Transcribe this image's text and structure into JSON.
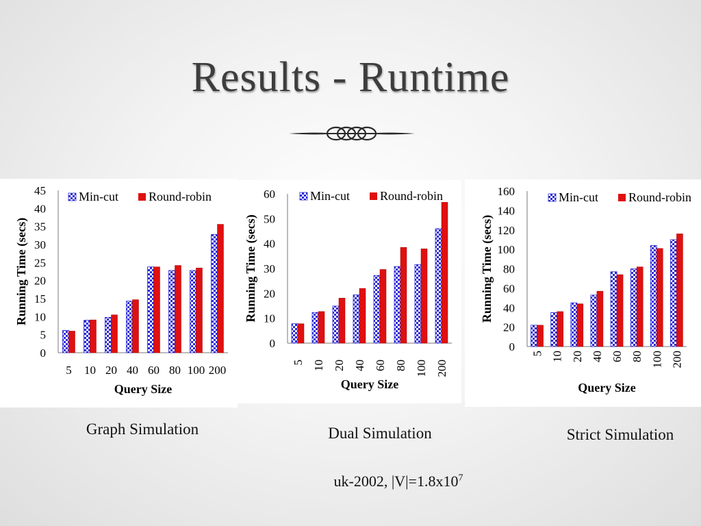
{
  "slide": {
    "title": "Results - Runtime",
    "footnote": {
      "text": "uk-2002, |V|=1.8x10",
      "superscript": "7"
    }
  },
  "colors": {
    "min_cut": "#2a2ad6",
    "round_robin": "#e01010"
  },
  "chart_data": [
    {
      "type": "bar",
      "caption": "Graph Simulation",
      "xlabel": "Query Size",
      "ylabel": "Running Time (secs)",
      "ylim": [
        0,
        45
      ],
      "ystep": 5,
      "tick_rotation": "horizontal",
      "legend_position": "top",
      "categories": [
        "5",
        "10",
        "20",
        "40",
        "60",
        "80",
        "100",
        "200"
      ],
      "series": [
        {
          "name": "Min-cut",
          "pattern": "checkered-blue",
          "values": [
            6.2,
            9.0,
            9.8,
            14.3,
            23.8,
            22.8,
            22.8,
            32.8
          ]
        },
        {
          "name": "Round-robin",
          "pattern": "solid-red",
          "values": [
            6.0,
            9.1,
            10.5,
            14.7,
            23.8,
            24.2,
            23.5,
            35.6
          ]
        }
      ]
    },
    {
      "type": "bar",
      "caption": "Dual Simulation",
      "xlabel": "Query Size",
      "ylabel": "Running Time (secs)",
      "ylim": [
        0,
        60
      ],
      "ystep": 10,
      "tick_rotation": "vertical",
      "legend_position": "top",
      "categories": [
        "5",
        "10",
        "20",
        "40",
        "60",
        "80",
        "100",
        "200"
      ],
      "series": [
        {
          "name": "Min-cut",
          "pattern": "checkered-blue",
          "values": [
            7.8,
            12.3,
            14.9,
            19.4,
            27.2,
            30.8,
            31.6,
            46.0
          ]
        },
        {
          "name": "Round-robin",
          "pattern": "solid-red",
          "values": [
            7.8,
            12.7,
            18.1,
            22.0,
            29.6,
            38.5,
            37.9,
            56.6
          ]
        }
      ]
    },
    {
      "type": "bar",
      "caption": "Strict Simulation",
      "xlabel": "Query Size",
      "ylabel": "Running Time (secs)",
      "ylim": [
        0,
        160
      ],
      "ystep": 20,
      "tick_rotation": "vertical",
      "legend_position": "top",
      "categories": [
        "5",
        "10",
        "20",
        "40",
        "60",
        "80",
        "100",
        "200"
      ],
      "series": [
        {
          "name": "Min-cut",
          "pattern": "checkered-blue",
          "values": [
            22,
            35,
            45,
            53,
            77,
            80,
            104,
            110
          ]
        },
        {
          "name": "Round-robin",
          "pattern": "solid-red",
          "values": [
            22,
            36,
            44,
            57,
            74,
            82,
            101,
            116
          ]
        }
      ]
    }
  ]
}
